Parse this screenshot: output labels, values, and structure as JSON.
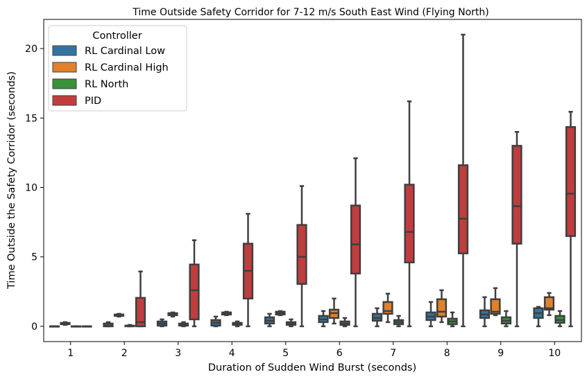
{
  "chart_data": {
    "type": "box",
    "title": "Time Outside Safety Corridor for 7-12 m/s South East Wind (Flying North)",
    "xlabel": "Duration of Sudden Wind Burst (seconds)",
    "ylabel": "Time Outside the Safety Corridor (seconds)",
    "categories": [
      "1",
      "2",
      "3",
      "4",
      "5",
      "6",
      "7",
      "8",
      "9",
      "10"
    ],
    "ylim": [
      -1.1,
      22.1
    ],
    "yticks": [
      0,
      5,
      10,
      15,
      20
    ],
    "yticklabels": [
      "0",
      "5",
      "10",
      "15",
      "20"
    ],
    "grid": false,
    "legend": {
      "title": "Controller",
      "placement": "top-left"
    },
    "series": [
      {
        "name": "RL Cardinal Low",
        "color": "#3274a1",
        "boxes": [
          [
            0,
            0,
            0,
            0,
            0
          ],
          [
            0,
            0,
            0.05,
            0.2,
            0.3
          ],
          [
            0,
            0.05,
            0.2,
            0.35,
            0.5
          ],
          [
            0,
            0.05,
            0.25,
            0.45,
            0.7
          ],
          [
            0,
            0.2,
            0.4,
            0.65,
            0.9
          ],
          [
            0,
            0.3,
            0.5,
            0.75,
            1.1
          ],
          [
            0,
            0.4,
            0.6,
            0.9,
            1.3
          ],
          [
            0,
            0.45,
            0.7,
            1.0,
            1.75
          ],
          [
            0,
            0.6,
            0.85,
            1.15,
            2.1
          ],
          [
            0,
            0.6,
            0.95,
            1.3,
            1.4
          ]
        ]
      },
      {
        "name": "RL Cardinal High",
        "color": "#e1812c",
        "boxes": [
          [
            0.1,
            0.15,
            0.2,
            0.25,
            0.3
          ],
          [
            0.7,
            0.75,
            0.8,
            0.85,
            0.9
          ],
          [
            0.7,
            0.8,
            0.9,
            0.95,
            1.0
          ],
          [
            0.8,
            0.85,
            0.9,
            1.0,
            1.05
          ],
          [
            0.8,
            0.85,
            0.95,
            1.05,
            1.1
          ],
          [
            0.2,
            0.6,
            0.95,
            1.2,
            2.0
          ],
          [
            0.3,
            0.9,
            1.1,
            1.75,
            2.35
          ],
          [
            0.3,
            0.7,
            1.05,
            1.95,
            2.6
          ],
          [
            0.8,
            0.9,
            1.05,
            1.95,
            2.75
          ],
          [
            0.8,
            1.2,
            1.3,
            2.1,
            2.4
          ]
        ]
      },
      {
        "name": "RL North",
        "color": "#3a923a",
        "boxes": [
          [
            0,
            0,
            0,
            0,
            0
          ],
          [
            0,
            0,
            0.02,
            0.05,
            0.1
          ],
          [
            0,
            0.05,
            0.1,
            0.2,
            0.3
          ],
          [
            0,
            0.1,
            0.15,
            0.25,
            0.35
          ],
          [
            0,
            0.1,
            0.2,
            0.3,
            0.5
          ],
          [
            0,
            0.1,
            0.2,
            0.35,
            0.6
          ],
          [
            0,
            0.15,
            0.3,
            0.45,
            0.75
          ],
          [
            0,
            0.15,
            0.35,
            0.55,
            1.0
          ],
          [
            0,
            0.2,
            0.4,
            0.65,
            1.1
          ],
          [
            0,
            0.25,
            0.45,
            0.75,
            1.1
          ]
        ]
      },
      {
        "name": "PID",
        "color": "#c03d3e",
        "boxes": [
          [
            0,
            0,
            0,
            0,
            0
          ],
          [
            0,
            0,
            0.3,
            2.05,
            3.95
          ],
          [
            0,
            0.5,
            2.6,
            4.45,
            6.2
          ],
          [
            0,
            2.0,
            4.0,
            5.95,
            8.1
          ],
          [
            0,
            3.05,
            5.0,
            7.3,
            10.1
          ],
          [
            0,
            3.8,
            5.9,
            8.7,
            12.1
          ],
          [
            0,
            4.6,
            6.8,
            10.2,
            16.2
          ],
          [
            0,
            5.25,
            7.75,
            11.6,
            21.0
          ],
          [
            0,
            5.95,
            8.65,
            13.0,
            14.0
          ],
          [
            0,
            6.5,
            9.55,
            14.35,
            15.45
          ]
        ]
      }
    ]
  }
}
